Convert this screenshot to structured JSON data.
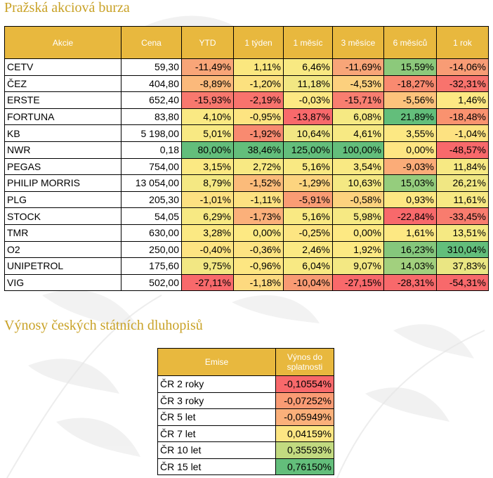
{
  "stocks": {
    "title": "Pražská akciová burza",
    "headers": [
      "Akcie",
      "Cena",
      "YTD",
      "1 týden",
      "1 měsíc",
      "3 měsíce",
      "6 měsíců",
      "1 rok"
    ],
    "rows": [
      {
        "cells": [
          "CETV",
          "59,30",
          "-11,49%",
          "1,11%",
          "6,46%",
          "-11,69%",
          "15,59%",
          "-14,06%"
        ],
        "colors": [
          "#f8a578",
          "#fbe77f",
          "#f8e982",
          "#f8a578",
          "#8cc97b",
          "#f89c75"
        ]
      },
      {
        "cells": [
          "ČEZ",
          "404,80",
          "-8,89%",
          "-1,20%",
          "11,18%",
          "-4,53%",
          "-18,27%",
          "-32,31%"
        ],
        "colors": [
          "#fbb97b",
          "#fce17f",
          "#f2e783",
          "#fcd07e",
          "#f98a70",
          "#f8736d"
        ]
      },
      {
        "cells": [
          "ERSTE",
          "652,40",
          "-15,93%",
          "-2,19%",
          "-0,03%",
          "-15,71%",
          "-5,56%",
          "1,46%"
        ],
        "colors": [
          "#f8786e",
          "#f8736d",
          "#fde883",
          "#f87e70",
          "#fcc37c",
          "#fde883"
        ]
      },
      {
        "cells": [
          "FORTUNA",
          "83,80",
          "4,10%",
          "-0,95%",
          "-13,87%",
          "6,08%",
          "21,89%",
          "-18,48%"
        ],
        "colors": [
          "#fae983",
          "#fde481",
          "#f8696b",
          "#f6e983",
          "#63be7b",
          "#f9926f"
        ]
      },
      {
        "cells": [
          "KB",
          "5 198,00",
          "5,01%",
          "-1,92%",
          "10,64%",
          "4,61%",
          "3,55%",
          "-1,04%"
        ],
        "colors": [
          "#f8e983",
          "#f88a70",
          "#f2e783",
          "#f7e983",
          "#fce883",
          "#fde281"
        ]
      },
      {
        "cells": [
          "NWR",
          "0,18",
          "80,00%",
          "38,46%",
          "125,00%",
          "100,00%",
          "0,00%",
          "-48,57%"
        ],
        "colors": [
          "#63be7b",
          "#63be7b",
          "#63be7b",
          "#63be7b",
          "#fee683",
          "#f8696b"
        ]
      },
      {
        "cells": [
          "PEGAS",
          "754,00",
          "3,15%",
          "2,72%",
          "5,16%",
          "3,54%",
          "-9,03%",
          "11,84%"
        ],
        "colors": [
          "#fbe983",
          "#f8e983",
          "#f9e983",
          "#f9e983",
          "#fbac78",
          "#f7e983"
        ]
      },
      {
        "cells": [
          "PHILIP MORRIS",
          "13 054,00",
          "8,79%",
          "-1,52%",
          "-1,29%",
          "10,63%",
          "15,03%",
          "26,21%"
        ],
        "colors": [
          "#f4e883",
          "#fbbb7a",
          "#fcd47f",
          "#f4e883",
          "#95cd7d",
          "#f0e783"
        ]
      },
      {
        "cells": [
          "PLG",
          "205,30",
          "-1,01%",
          "-1,11%",
          "-5,91%",
          "-0,58%",
          "0,93%",
          "11,61%"
        ],
        "colors": [
          "#fde181",
          "#fde181",
          "#fa9c74",
          "#fdd27e",
          "#fde883",
          "#f7e983"
        ]
      },
      {
        "cells": [
          "STOCK",
          "54,05",
          "6,29%",
          "-1,73%",
          "5,16%",
          "5,98%",
          "-22,84%",
          "-33,45%"
        ],
        "colors": [
          "#f7e983",
          "#fbb07a",
          "#f9e983",
          "#f6e983",
          "#f8696b",
          "#f87c6e"
        ]
      },
      {
        "cells": [
          "TMR",
          "630,00",
          "3,28%",
          "0,00%",
          "-0,25%",
          "0,00%",
          "1,61%",
          "13,51%"
        ],
        "colors": [
          "#fbe983",
          "#fde983",
          "#fde582",
          "#fde983",
          "#fde883",
          "#f5e983"
        ]
      },
      {
        "cells": [
          "O2",
          "250,00",
          "-0,40%",
          "-0,36%",
          "2,46%",
          "1,92%",
          "16,23%",
          "310,04%"
        ],
        "colors": [
          "#fde482",
          "#fde382",
          "#fbe983",
          "#fce983",
          "#85c77c",
          "#63be7b"
        ]
      },
      {
        "cells": [
          "UNIPETROL",
          "175,60",
          "9,75%",
          "-0,96%",
          "6,04%",
          "9,07%",
          "14,03%",
          "37,83%"
        ],
        "colors": [
          "#f2e783",
          "#fde682",
          "#f8e983",
          "#f3e883",
          "#a2d07e",
          "#eae683"
        ]
      },
      {
        "cells": [
          "VIG",
          "502,00",
          "-27,11%",
          "-1,18%",
          "-10,04%",
          "-27,15%",
          "-28,31%",
          "-54,31%"
        ],
        "colors": [
          "#f8696b",
          "#fdd97f",
          "#f89a73",
          "#f8696b",
          "#f8696b",
          "#f8696b"
        ]
      }
    ]
  },
  "bonds": {
    "title": "Výnosy českých státních dluhopisů",
    "headers": [
      "Emise",
      "Výnos do splatnosti"
    ],
    "rows": [
      {
        "cells": [
          "ČR 2 roky",
          "-0,10554%"
        ],
        "color": "#f8696b"
      },
      {
        "cells": [
          "ČR 3 roky",
          "-0,07252%"
        ],
        "color": "#fa9b74"
      },
      {
        "cells": [
          "ČR 5 let",
          "-0,05949%"
        ],
        "color": "#fbb07a"
      },
      {
        "cells": [
          "ČR 7 let",
          "0,04159%"
        ],
        "color": "#fde683"
      },
      {
        "cells": [
          "ČR 10 let",
          "0,35593%"
        ],
        "color": "#c2da80"
      },
      {
        "cells": [
          "ČR 15 let",
          "0,76150%"
        ],
        "color": "#63be7b"
      }
    ]
  }
}
